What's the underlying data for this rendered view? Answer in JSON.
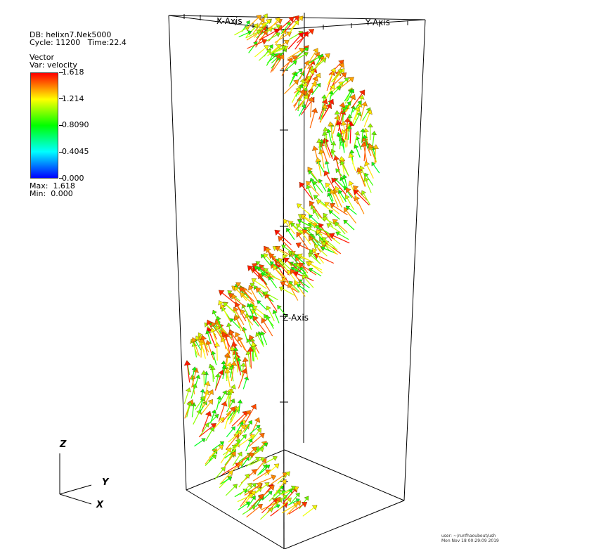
{
  "db_info": {
    "db": "DB: helixn7.Nek5000",
    "cycle_time": "Cycle: 11200   Time:22.4"
  },
  "legend": {
    "type": "Vector",
    "var": "Var: velocity",
    "ticks": [
      "1.618",
      "1.214",
      "0.8090",
      "0.4045",
      "0.000"
    ],
    "max": "Max:  1.618",
    "min": "Min:  0.000",
    "colors": [
      "#ff0000",
      "#ffff00",
      "#00ff00",
      "#00ffff",
      "#0000ff"
    ]
  },
  "axes_3d": {
    "x_label": "X-Axis",
    "y_label": "Y-Axis",
    "z_label": "Z-Axis"
  },
  "triad": {
    "z": "Z",
    "y": "Y",
    "x": "X"
  },
  "user_info": {
    "line1": "user: ~/runfhaoubout/ush",
    "line2": "Mon Nov 18 00:29:09 2019"
  }
}
